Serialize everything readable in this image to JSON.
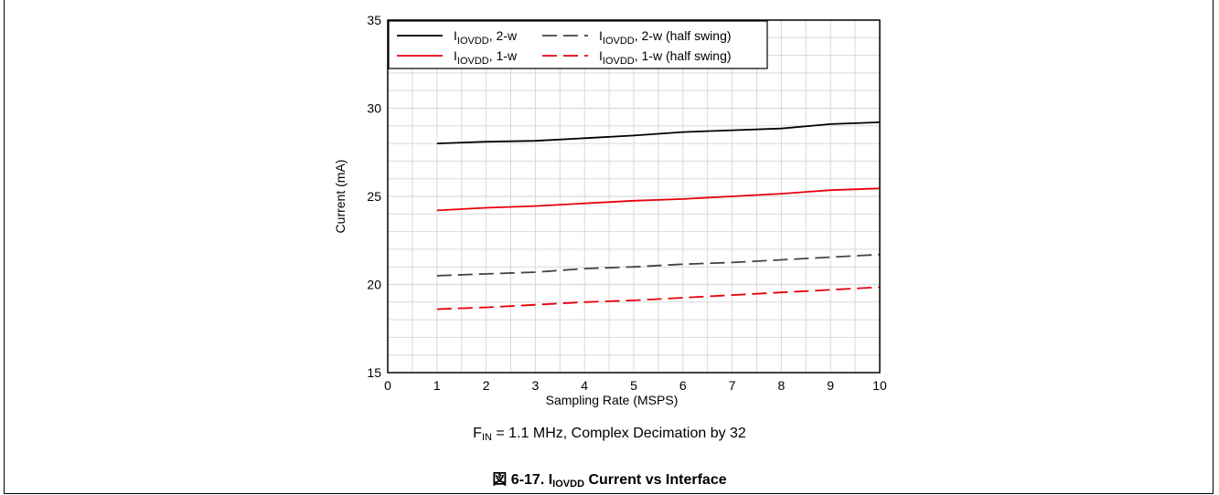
{
  "caption": {
    "condition": {
      "prefix": "F",
      "sub": "IN",
      "rest": " = 1.1 MHz, Complex Decimation by 32"
    },
    "figure": {
      "prefix": "図 6-17. I",
      "sub": "IOVDD",
      "rest": " Current vs Interface"
    }
  },
  "colors": {
    "black": "#000000",
    "gray": "#444444",
    "red": "#e8000b",
    "grid": "#d9d9d9"
  },
  "chart_data": {
    "type": "line",
    "title": "",
    "xlabel": "Sampling Rate (MSPS)",
    "ylabel": "Current (mA)",
    "xlim": [
      0,
      10
    ],
    "ylim": [
      15,
      35
    ],
    "xticks": [
      0,
      1,
      2,
      3,
      4,
      5,
      6,
      7,
      8,
      9,
      10
    ],
    "yticks": [
      15,
      20,
      25,
      30,
      35
    ],
    "grid": true,
    "legend_position": "top-left",
    "x": [
      1,
      2,
      3,
      4,
      5,
      6,
      7,
      8,
      9,
      10
    ],
    "series": [
      {
        "name": "I_IOVDD, 2-w",
        "label_main": "I",
        "label_sub": "IOVDD",
        "label_rest": ", 2-w",
        "color": "#000000",
        "dash": "solid",
        "values": [
          28.0,
          28.1,
          28.15,
          28.3,
          28.45,
          28.65,
          28.75,
          28.85,
          29.1,
          29.2
        ]
      },
      {
        "name": "I_IOVDD, 2-w (half swing)",
        "label_main": "I",
        "label_sub": "IOVDD",
        "label_rest": ", 2-w (half swing)",
        "color": "#444444",
        "dash": "dashed",
        "values": [
          20.5,
          20.6,
          20.7,
          20.9,
          21.0,
          21.15,
          21.25,
          21.4,
          21.55,
          21.7
        ]
      },
      {
        "name": "I_IOVDD, 1-w",
        "label_main": "I",
        "label_sub": "IOVDD",
        "label_rest": ", 1-w",
        "color": "#e8000b",
        "dash": "solid",
        "values": [
          24.2,
          24.35,
          24.45,
          24.6,
          24.75,
          24.85,
          25.0,
          25.15,
          25.35,
          25.45
        ]
      },
      {
        "name": "I_IOVDD, 1-w (half swing)",
        "label_main": "I",
        "label_sub": "IOVDD",
        "label_rest": ", 1-w (half swing)",
        "color": "#e8000b",
        "dash": "dashed",
        "values": [
          18.6,
          18.7,
          18.85,
          19.0,
          19.1,
          19.25,
          19.4,
          19.55,
          19.7,
          19.85
        ]
      }
    ]
  }
}
